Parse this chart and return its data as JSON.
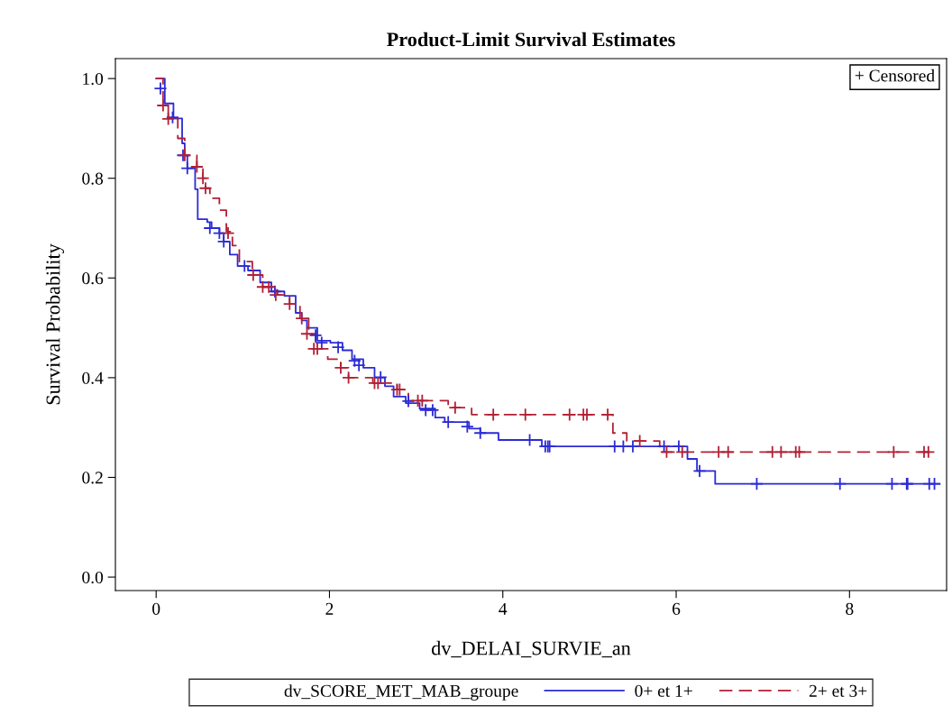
{
  "chart_data": {
    "type": "step",
    "title": "Product-Limit Survival Estimates",
    "xlabel": "dv_DELAI_SURVIE_an",
    "ylabel": "Survival Probability",
    "legend_title": "dv_SCORE_MET_MAB_groupe",
    "legend": "bottom",
    "marker": "none",
    "grid": false,
    "xlim": [
      -0.47,
      9.12
    ],
    "ylim": [
      -0.027,
      1.04
    ],
    "xticks": [
      0,
      2,
      4,
      6,
      8
    ],
    "yticks": [
      {
        "value": 0,
        "label": "0.0"
      },
      {
        "value": 0.2,
        "label": "0.2"
      },
      {
        "value": 0.4,
        "label": "0.4"
      },
      {
        "value": 0.6,
        "label": "0.6"
      },
      {
        "value": 0.8,
        "label": "0.8"
      },
      {
        "value": 1,
        "label": "1.0"
      }
    ],
    "annotations": [
      "+ Censored"
    ],
    "series": [
      {
        "name": "0+ et 1+",
        "color": "#2b2bd6",
        "line_style": "solid",
        "x": [
          0,
          0.1,
          0.2,
          0.3,
          0.33,
          0.36,
          0.45,
          0.48,
          0.59,
          0.64,
          0.73,
          0.78,
          0.85,
          0.94,
          1.06,
          1.2,
          1.33,
          1.48,
          1.61,
          1.68,
          1.74,
          1.86,
          2.01,
          2.15,
          2.26,
          2.39,
          2.52,
          2.64,
          2.74,
          2.88,
          3.04,
          3.22,
          3.33,
          3.61,
          3.74,
          3.95,
          4.45,
          6.13,
          6.24,
          6.45,
          9.04
        ],
        "values": [
          1.0,
          0.95,
          0.92,
          0.87,
          0.846,
          0.82,
          0.778,
          0.718,
          0.712,
          0.7,
          0.69,
          0.673,
          0.647,
          0.624,
          0.615,
          0.591,
          0.573,
          0.564,
          0.53,
          0.515,
          0.5,
          0.474,
          0.47,
          0.455,
          0.437,
          0.42,
          0.4,
          0.383,
          0.362,
          0.349,
          0.338,
          0.32,
          0.311,
          0.298,
          0.289,
          0.275,
          0.262,
          0.237,
          0.213,
          0.187,
          0.187
        ]
      },
      {
        "name": "2+ et 3+",
        "color": "#b22035",
        "line_style": "dashed",
        "x": [
          0,
          0.08,
          0.14,
          0.25,
          0.33,
          0.47,
          0.54,
          0.57,
          0.62,
          0.73,
          0.81,
          0.88,
          0.96,
          1.11,
          1.23,
          1.4,
          1.54,
          1.66,
          1.76,
          1.84,
          1.98,
          2.13,
          2.22,
          2.5,
          2.78,
          2.91,
          3.37,
          3.64,
          5.27,
          5.43,
          5.81,
          8.98
        ],
        "values": [
          1.0,
          0.95,
          0.92,
          0.88,
          0.846,
          0.823,
          0.8,
          0.78,
          0.76,
          0.736,
          0.693,
          0.665,
          0.633,
          0.606,
          0.582,
          0.566,
          0.548,
          0.519,
          0.488,
          0.458,
          0.437,
          0.42,
          0.4,
          0.389,
          0.376,
          0.354,
          0.34,
          0.326,
          0.289,
          0.273,
          0.251,
          0.251
        ]
      },
      {
        "type": "scatter",
        "marker": "cross",
        "color": "#2b2bd6",
        "x": [
          0.05,
          0.19,
          0.31,
          0.36,
          0.62,
          0.73,
          0.78,
          1.02,
          1.37,
          1.84,
          1.91,
          2.1,
          2.29,
          2.34,
          2.59,
          2.91,
          3.11,
          3.19,
          3.37,
          3.59,
          3.74,
          4.31,
          4.49,
          4.52,
          4.54,
          5.29,
          5.39,
          5.5,
          5.86,
          6.03,
          6.27,
          6.93,
          7.89,
          8.49,
          8.66,
          8.67,
          8.92,
          8.98
        ],
        "values": [
          0.98,
          0.922,
          0.846,
          0.82,
          0.7,
          0.69,
          0.673,
          0.624,
          0.573,
          0.485,
          0.47,
          0.461,
          0.434,
          0.425,
          0.401,
          0.353,
          0.335,
          0.335,
          0.311,
          0.302,
          0.289,
          0.275,
          0.262,
          0.262,
          0.262,
          0.262,
          0.262,
          0.262,
          0.262,
          0.262,
          0.213,
          0.187,
          0.187,
          0.187,
          0.187,
          0.187,
          0.187,
          0.187
        ]
      },
      {
        "type": "scatter",
        "marker": "cross",
        "color": "#b22035",
        "x": [
          0.08,
          0.14,
          0.33,
          0.47,
          0.54,
          0.57,
          0.83,
          1.12,
          1.23,
          1.3,
          1.38,
          1.54,
          1.68,
          1.74,
          1.82,
          1.86,
          2.13,
          2.22,
          2.52,
          2.56,
          2.78,
          2.81,
          3.02,
          3.07,
          3.45,
          3.89,
          4.26,
          4.77,
          4.93,
          4.97,
          5.21,
          5.58,
          5.89,
          6.07,
          6.49,
          6.6,
          7.11,
          7.21,
          7.38,
          7.42,
          8.51,
          8.86,
          8.91
        ],
        "values": [
          0.946,
          0.919,
          0.846,
          0.823,
          0.8,
          0.78,
          0.69,
          0.606,
          0.582,
          0.582,
          0.566,
          0.548,
          0.519,
          0.488,
          0.458,
          0.458,
          0.42,
          0.4,
          0.389,
          0.389,
          0.376,
          0.376,
          0.354,
          0.354,
          0.34,
          0.326,
          0.326,
          0.326,
          0.326,
          0.326,
          0.326,
          0.273,
          0.251,
          0.251,
          0.251,
          0.251,
          0.251,
          0.251,
          0.251,
          0.251,
          0.251,
          0.251,
          0.251
        ]
      }
    ]
  }
}
